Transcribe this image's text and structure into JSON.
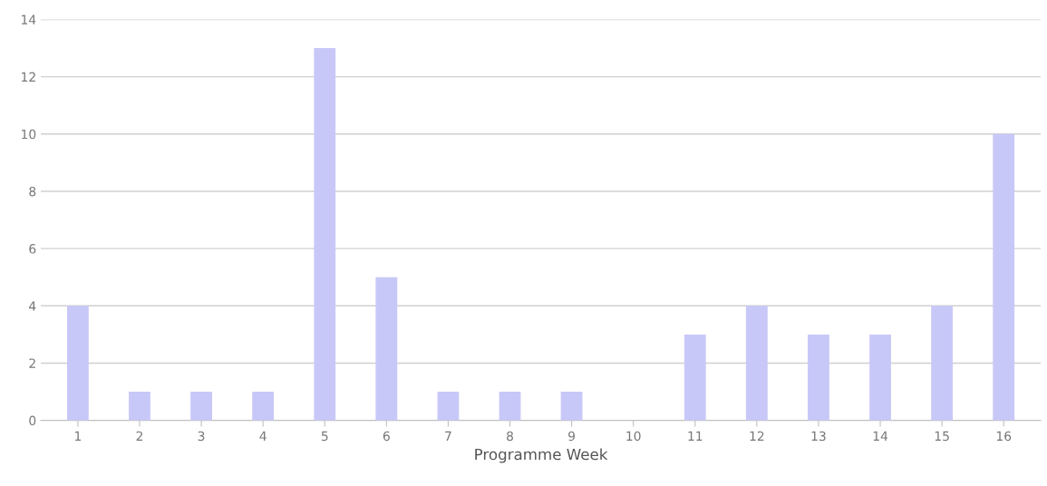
{
  "chart_data": {
    "type": "bar",
    "xlabel": "Programme Week",
    "categories": [
      "1",
      "2",
      "3",
      "4",
      "5",
      "6",
      "7",
      "8",
      "9",
      "10",
      "11",
      "12",
      "13",
      "14",
      "15",
      "16"
    ],
    "values": [
      4,
      1,
      1,
      1,
      13,
      5,
      1,
      1,
      1,
      0,
      3,
      4,
      3,
      3,
      4,
      10
    ],
    "color": "#c8c8f8",
    "ylim": [
      0,
      14
    ],
    "yticks": [
      0,
      2,
      4,
      6,
      8,
      10,
      12,
      14
    ],
    "grid": "y",
    "legend": false
  }
}
